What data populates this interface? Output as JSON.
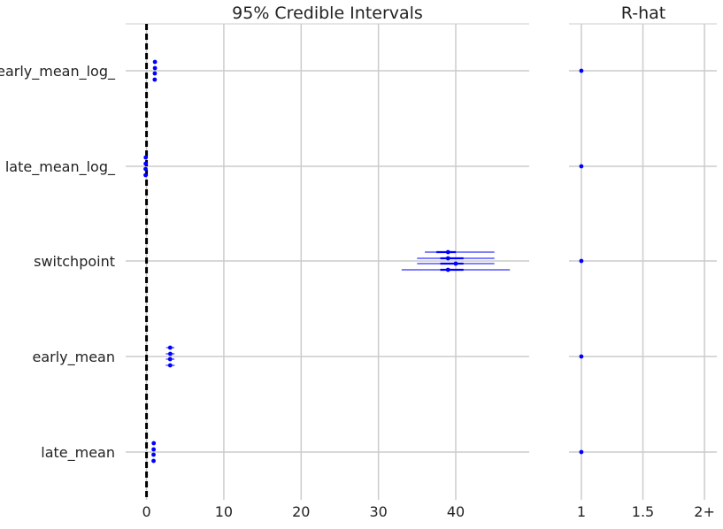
{
  "chart_data": [
    {
      "type": "forest",
      "title": "95% Credible Intervals",
      "categories": [
        "early_mean_log_",
        "late_mean_log_",
        "switchpoint",
        "early_mean",
        "late_mean"
      ],
      "xlim": [
        -2.7,
        49.5
      ],
      "xticks": [
        "0",
        "10",
        "20",
        "30",
        "40"
      ],
      "xtick_values": [
        0,
        10,
        20,
        30,
        40
      ],
      "reference_line": 0,
      "color": "#0000ff",
      "chains": [
        [
          {
            "mean": 1.09,
            "hpd_2_5": 0.95,
            "hpd_97_5": 1.23,
            "q25": 1.05,
            "q75": 1.14
          },
          {
            "mean": 1.09,
            "hpd_2_5": 0.96,
            "hpd_97_5": 1.24,
            "q25": 1.05,
            "q75": 1.14
          },
          {
            "mean": 1.07,
            "hpd_2_5": 0.93,
            "hpd_97_5": 1.22,
            "q25": 1.03,
            "q75": 1.12
          },
          {
            "mean": 1.06,
            "hpd_2_5": 0.92,
            "hpd_97_5": 1.21,
            "q25": 1.02,
            "q75": 1.11
          }
        ],
        [
          {
            "mean": -0.1,
            "hpd_2_5": -0.34,
            "hpd_97_5": 0.12,
            "q25": -0.18,
            "q75": -0.02
          },
          {
            "mean": -0.11,
            "hpd_2_5": -0.35,
            "hpd_97_5": 0.11,
            "q25": -0.19,
            "q75": -0.03
          },
          {
            "mean": -0.12,
            "hpd_2_5": -0.36,
            "hpd_97_5": 0.1,
            "q25": -0.2,
            "q75": -0.04
          },
          {
            "mean": -0.12,
            "hpd_2_5": -0.37,
            "hpd_97_5": 0.1,
            "q25": -0.2,
            "q75": -0.04
          }
        ],
        [
          {
            "mean": 39,
            "hpd_2_5": 36,
            "hpd_97_5": 45,
            "q25": 37.5,
            "q75": 40
          },
          {
            "mean": 39,
            "hpd_2_5": 35,
            "hpd_97_5": 45,
            "q25": 38,
            "q75": 41
          },
          {
            "mean": 40,
            "hpd_2_5": 35,
            "hpd_97_5": 45,
            "q25": 38,
            "q75": 41
          },
          {
            "mean": 39,
            "hpd_2_5": 33,
            "hpd_97_5": 47,
            "q25": 38,
            "q75": 41
          }
        ],
        [
          {
            "mean": 3.06,
            "hpd_2_5": 2.55,
            "hpd_97_5": 3.6,
            "q25": 2.88,
            "q75": 3.24
          },
          {
            "mean": 3.07,
            "hpd_2_5": 2.5,
            "hpd_97_5": 3.62,
            "q25": 2.88,
            "q75": 3.25
          },
          {
            "mean": 3.05,
            "hpd_2_5": 2.52,
            "hpd_97_5": 3.6,
            "q25": 2.87,
            "q75": 3.23
          },
          {
            "mean": 3.06,
            "hpd_2_5": 2.5,
            "hpd_97_5": 3.64,
            "q25": 2.87,
            "q75": 3.25
          }
        ],
        [
          {
            "mean": 0.93,
            "hpd_2_5": 0.7,
            "hpd_97_5": 1.13,
            "q25": 0.85,
            "q75": 1.0
          },
          {
            "mean": 0.92,
            "hpd_2_5": 0.69,
            "hpd_97_5": 1.12,
            "q25": 0.84,
            "q75": 0.99
          },
          {
            "mean": 0.91,
            "hpd_2_5": 0.69,
            "hpd_97_5": 1.12,
            "q25": 0.83,
            "q75": 0.98
          },
          {
            "mean": 0.91,
            "hpd_2_5": 0.68,
            "hpd_97_5": 1.12,
            "q25": 0.83,
            "q75": 0.98
          }
        ]
      ]
    },
    {
      "type": "scatter",
      "title": "R-hat",
      "categories": [
        "early_mean_log_",
        "late_mean_log_",
        "switchpoint",
        "early_mean",
        "late_mean"
      ],
      "values": [
        1.0,
        1.0,
        1.0,
        1.0,
        1.0
      ],
      "xlim": [
        0.9,
        2.1
      ],
      "xticks": [
        "1",
        "1.5",
        "2+"
      ],
      "xtick_values": [
        1,
        1.5,
        2
      ],
      "color": "#0000ff"
    }
  ]
}
